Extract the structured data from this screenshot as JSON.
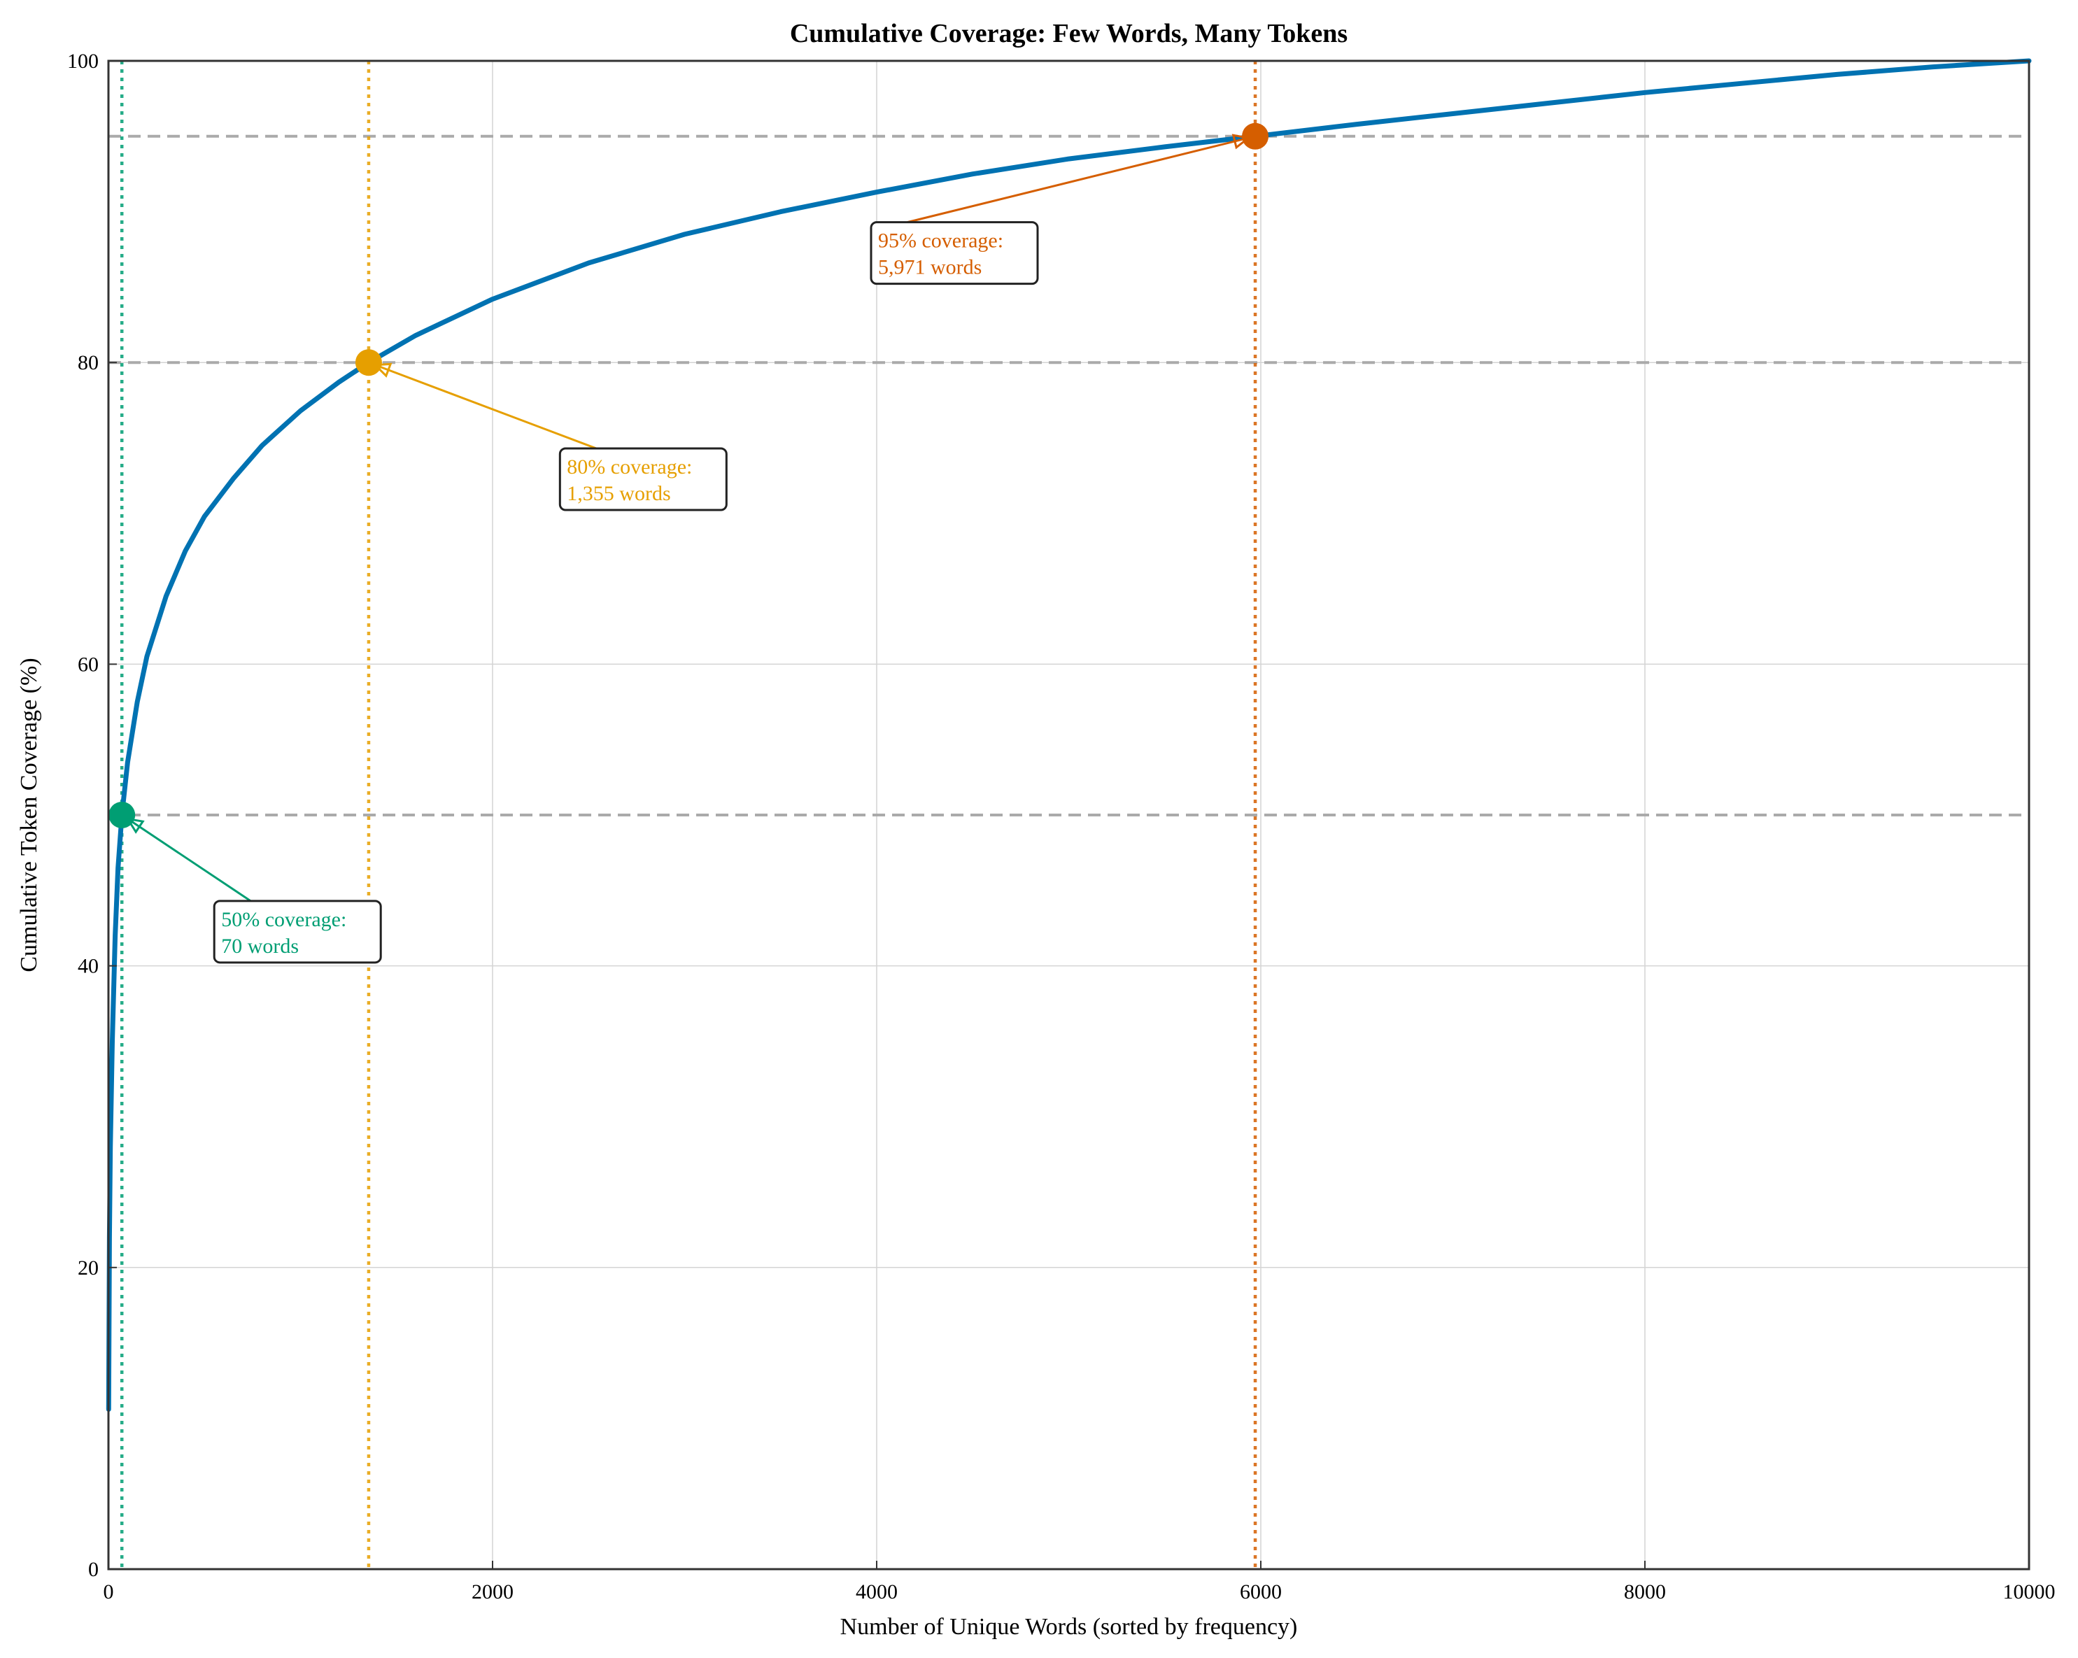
{
  "chart_data": {
    "type": "line",
    "title": "Cumulative Coverage: Few Words, Many Tokens",
    "xlabel": "Number of Unique Words (sorted by frequency)",
    "ylabel": "Cumulative Token Coverage (%)",
    "xlim": [
      0,
      10000
    ],
    "ylim": [
      0,
      100
    ],
    "xticks": [
      0,
      2000,
      4000,
      6000,
      8000,
      10000
    ],
    "yticks": [
      0,
      20,
      40,
      60,
      80,
      100
    ],
    "grid": true,
    "series": [
      {
        "color": "#0072b2",
        "x": [
          1,
          5,
          10,
          20,
          35,
          50,
          70,
          100,
          150,
          200,
          300,
          400,
          500,
          650,
          800,
          1000,
          1200,
          1355,
          1600,
          2000,
          2500,
          3000,
          3500,
          4000,
          4500,
          5000,
          5500,
          5971,
          6500,
          7000,
          7500,
          8000,
          8500,
          9000,
          9500,
          10000
        ],
        "y": [
          10.6,
          22,
          28,
          35,
          42,
          46.5,
          50,
          53.5,
          57.5,
          60.5,
          64.5,
          67.5,
          69.8,
          72.3,
          74.5,
          76.8,
          78.7,
          80,
          81.8,
          84.2,
          86.6,
          88.5,
          90,
          91.3,
          92.5,
          93.5,
          94.3,
          95,
          95.8,
          96.5,
          97.2,
          97.9,
          98.5,
          99.1,
          99.6,
          100
        ]
      }
    ],
    "thresholds": [
      {
        "level": 50,
        "words": 70,
        "color": "#009e73",
        "line1": "50% coverage:",
        "line2": "70 words",
        "label_x": 580,
        "label_y": 40.5
      },
      {
        "level": 80,
        "words": 1355,
        "color": "#e69f00",
        "line1": "80% coverage:",
        "line2": "1,355 words",
        "label_x": 2380,
        "label_y": 70.5
      },
      {
        "level": 95,
        "words": 5971,
        "color": "#d55e00",
        "line1": "95% coverage:",
        "line2": "5,971 words",
        "label_x": 4000,
        "label_y": 85.5
      }
    ]
  }
}
